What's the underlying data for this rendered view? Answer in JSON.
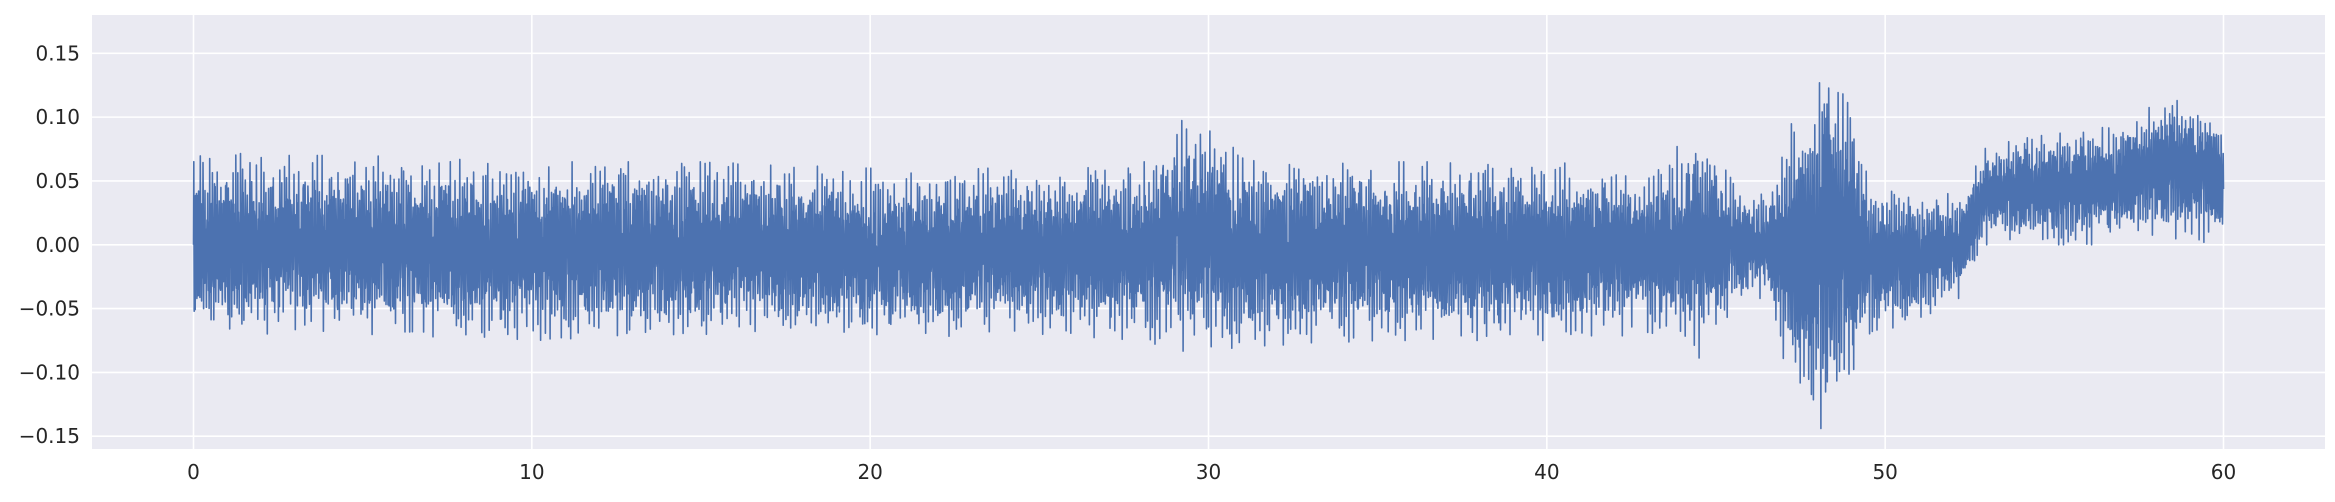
{
  "chart_data": {
    "type": "line",
    "title": "",
    "xlabel": "",
    "ylabel": "",
    "xlim": [
      -3,
      63
    ],
    "ylim": [
      -0.16,
      0.18
    ],
    "grid": true,
    "legend": "none",
    "x_ticks": [
      0,
      10,
      20,
      30,
      40,
      50,
      60
    ],
    "x_tick_labels": [
      "0",
      "10",
      "20",
      "30",
      "40",
      "50",
      "60"
    ],
    "y_ticks": [
      -0.15,
      -0.1,
      -0.05,
      0.0,
      0.05,
      0.1,
      0.15
    ],
    "y_tick_labels": [
      "−0.15",
      "−0.10",
      "−0.05",
      "0.00",
      "0.05",
      "0.10",
      "0.15"
    ],
    "colors": {
      "background": "#EAEAF2",
      "grid": "#FFFFFF",
      "line": "#4C72B0"
    },
    "series": [
      {
        "x_range": [
          0,
          60
        ],
        "samples": 6000,
        "envelope": {
          "x": [
            0,
            2,
            5,
            10,
            15,
            20,
            25,
            28,
            29.5,
            31,
            35,
            40,
            43,
            44.5,
            45.5,
            46.5,
            47.5,
            48.2,
            48.8,
            49.5,
            51,
            52.3,
            53,
            55,
            57,
            58.5,
            60
          ],
          "upper": [
            0.075,
            0.07,
            0.07,
            0.065,
            0.065,
            0.06,
            0.06,
            0.065,
            0.105,
            0.07,
            0.065,
            0.065,
            0.06,
            0.09,
            0.05,
            0.04,
            0.115,
            0.165,
            0.14,
            0.05,
            0.04,
            0.04,
            0.08,
            0.09,
            0.1,
            0.12,
            0.1
          ],
          "lower": [
            -0.08,
            -0.07,
            -0.07,
            -0.075,
            -0.07,
            -0.075,
            -0.07,
            -0.075,
            -0.085,
            -0.08,
            -0.075,
            -0.075,
            -0.07,
            -0.09,
            -0.05,
            -0.04,
            -0.14,
            -0.145,
            -0.135,
            -0.07,
            -0.06,
            -0.04,
            0.0,
            0.0,
            0.0,
            0.005,
            0.0
          ]
        }
      }
    ]
  }
}
